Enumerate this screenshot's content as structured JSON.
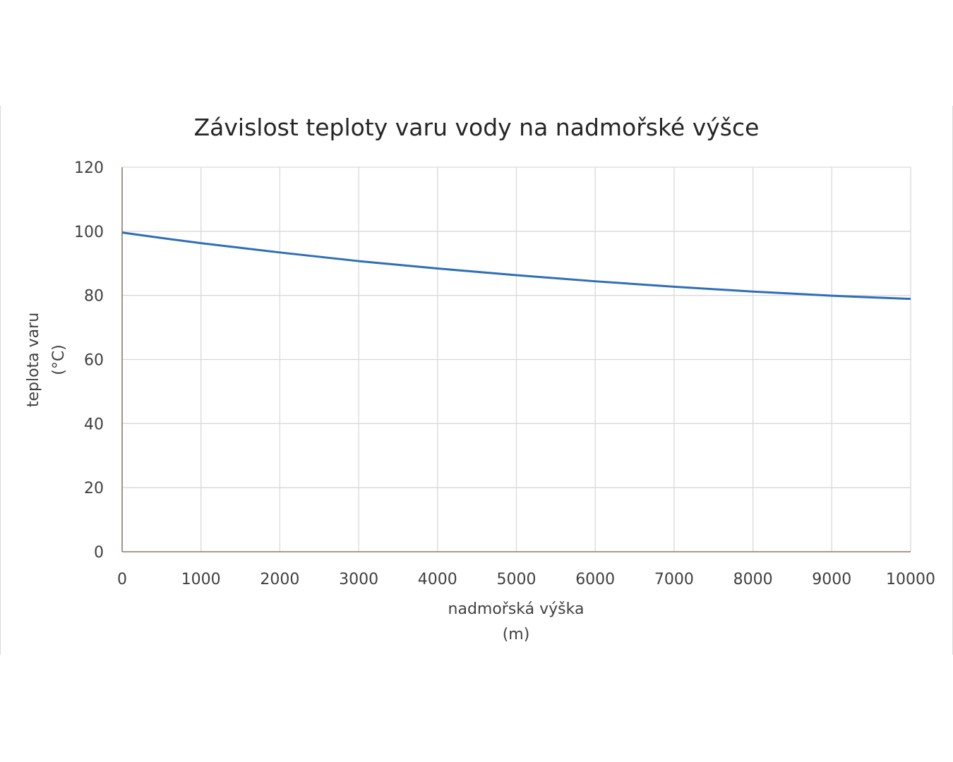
{
  "chart_data": {
    "type": "line",
    "title": "Závislost teploty varu vody na nadmořské výšce",
    "xlabel": [
      "nadmořská výška",
      "(m)"
    ],
    "ylabel": [
      "teplota varu",
      "(°C)"
    ],
    "xlim": [
      0,
      10000
    ],
    "ylim": [
      0,
      120
    ],
    "x_ticks": [
      "0",
      "1000",
      "2000",
      "3000",
      "4000",
      "5000",
      "6000",
      "7000",
      "8000",
      "9000",
      "10000"
    ],
    "y_ticks": [
      "0",
      "20",
      "40",
      "60",
      "80",
      "100",
      "120"
    ],
    "grid": true,
    "legend": "none",
    "series": [
      {
        "color": "#2e6eb8",
        "x": [
          0,
          1000,
          2000,
          3000,
          4000,
          5000,
          6000,
          7000,
          8000,
          9000,
          10000
        ],
        "y": [
          99.6,
          96.3,
          93.4,
          90.7,
          88.4,
          86.3,
          84.4,
          82.7,
          81.2,
          79.9,
          78.9
        ]
      }
    ]
  }
}
